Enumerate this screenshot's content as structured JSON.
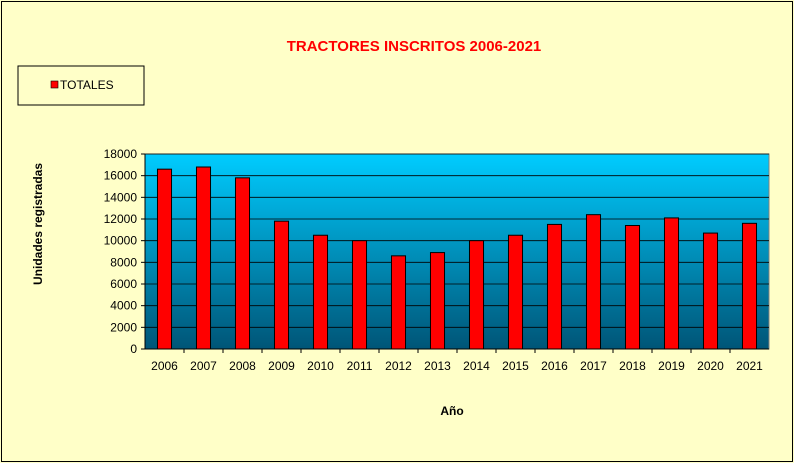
{
  "chart_data": {
    "type": "bar",
    "title": "TRACTORES INSCRITOS 2006-2021",
    "xlabel": "Año",
    "ylabel": "Unidades registradas",
    "categories": [
      "2006",
      "2007",
      "2008",
      "2009",
      "2010",
      "2011",
      "2012",
      "2013",
      "2014",
      "2015",
      "2016",
      "2017",
      "2018",
      "2019",
      "2020",
      "2021"
    ],
    "series": [
      {
        "name": "TOTALES",
        "color": "#ff0000",
        "values": [
          16600,
          16800,
          15800,
          11800,
          10500,
          10000,
          8600,
          8900,
          10000,
          10500,
          11500,
          12400,
          11400,
          12100,
          10700,
          11600
        ]
      }
    ],
    "ylim": [
      0,
      18000
    ],
    "yticks": [
      0,
      2000,
      4000,
      6000,
      8000,
      10000,
      12000,
      14000,
      16000,
      18000
    ],
    "grid": true,
    "legend": "top-left",
    "plot_background": [
      "#00ccff",
      "#005577"
    ]
  }
}
